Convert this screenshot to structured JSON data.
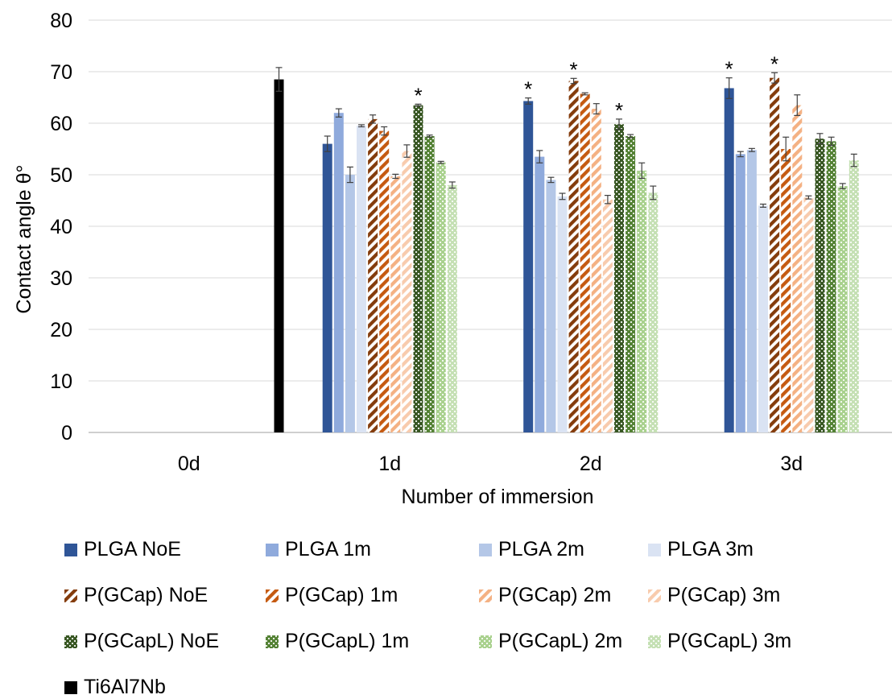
{
  "chart_data": {
    "type": "bar",
    "title": "",
    "xlabel": "Number of immersion",
    "ylabel": "Contact angle θ°",
    "ylim": [
      0,
      80
    ],
    "yticks": [
      0,
      10,
      20,
      30,
      40,
      50,
      60,
      70,
      80
    ],
    "categories": [
      "0d",
      "1d",
      "2d",
      "3d"
    ],
    "grid": "horizontal",
    "legend_position": "bottom",
    "annotation_symbol": "*",
    "reference": {
      "name": "Ti6Al7Nb",
      "category": "0d",
      "value": 68.5,
      "error": 2.3,
      "color": "#000000"
    },
    "series": [
      {
        "name": "PLGA NoE",
        "color": "#2f5597",
        "pattern": "solid",
        "values": [
          null,
          56.0,
          64.3,
          66.8
        ],
        "errors": [
          null,
          1.5,
          0.6,
          2.0
        ],
        "significant": [
          false,
          false,
          true,
          true
        ]
      },
      {
        "name": "PLGA 1m",
        "color": "#8faadc",
        "pattern": "solid",
        "values": [
          null,
          62.0,
          53.5,
          54.0
        ],
        "errors": [
          null,
          0.8,
          1.2,
          0.5
        ],
        "significant": [
          false,
          false,
          false,
          false
        ]
      },
      {
        "name": "PLGA 2m",
        "color": "#b4c7e7",
        "pattern": "solid",
        "values": [
          null,
          50.0,
          49.0,
          54.8
        ],
        "errors": [
          null,
          1.5,
          0.5,
          0.3
        ],
        "significant": [
          false,
          false,
          false,
          false
        ]
      },
      {
        "name": "PLGA 3m",
        "color": "#dae3f3",
        "pattern": "solid",
        "values": [
          null,
          59.5,
          45.8,
          44.0
        ],
        "errors": [
          null,
          0.2,
          0.6,
          0.3
        ],
        "significant": [
          false,
          false,
          false,
          false
        ]
      },
      {
        "name": "P(GCap) NoE",
        "color": "#843c0c",
        "pattern": "diag",
        "values": [
          null,
          60.8,
          68.2,
          68.8
        ],
        "errors": [
          null,
          0.8,
          0.5,
          1.0
        ],
        "significant": [
          false,
          false,
          true,
          true
        ]
      },
      {
        "name": "P(GCap) 1m",
        "color": "#c55a11",
        "pattern": "diag",
        "values": [
          null,
          58.5,
          65.7,
          55.0
        ],
        "errors": [
          null,
          0.8,
          0.2,
          2.3
        ],
        "significant": [
          false,
          false,
          false,
          false
        ]
      },
      {
        "name": "P(GCap) 2m",
        "color": "#f4b183",
        "pattern": "diag",
        "values": [
          null,
          49.7,
          62.8,
          63.5
        ],
        "errors": [
          null,
          0.4,
          1.0,
          2.0
        ],
        "significant": [
          false,
          false,
          false,
          false
        ]
      },
      {
        "name": "P(GCap) 3m",
        "color": "#f8cbad",
        "pattern": "diag",
        "values": [
          null,
          54.6,
          45.2,
          45.6
        ],
        "errors": [
          null,
          1.2,
          0.8,
          0.3
        ],
        "significant": [
          false,
          false,
          false,
          false
        ]
      },
      {
        "name": "P(GCapL) NoE",
        "color": "#385723",
        "pattern": "check",
        "values": [
          null,
          63.5,
          59.8,
          57.0
        ],
        "errors": [
          null,
          0.2,
          1.0,
          1.0
        ],
        "significant": [
          false,
          true,
          true,
          false
        ]
      },
      {
        "name": "P(GCapL) 1m",
        "color": "#548235",
        "pattern": "check",
        "values": [
          null,
          57.5,
          57.5,
          56.5
        ],
        "errors": [
          null,
          0.2,
          0.3,
          0.8
        ],
        "significant": [
          false,
          false,
          false,
          false
        ]
      },
      {
        "name": "P(GCapL) 2m",
        "color": "#a9d18e",
        "pattern": "check",
        "values": [
          null,
          52.4,
          50.8,
          47.8
        ],
        "errors": [
          null,
          0.2,
          1.5,
          0.5
        ],
        "significant": [
          false,
          false,
          false,
          false
        ]
      },
      {
        "name": "P(GCapL) 3m",
        "color": "#c5e0b4",
        "pattern": "check",
        "values": [
          null,
          48.0,
          46.5,
          52.8
        ],
        "errors": [
          null,
          0.6,
          1.3,
          1.2
        ],
        "significant": [
          false,
          false,
          false,
          false
        ]
      }
    ]
  }
}
